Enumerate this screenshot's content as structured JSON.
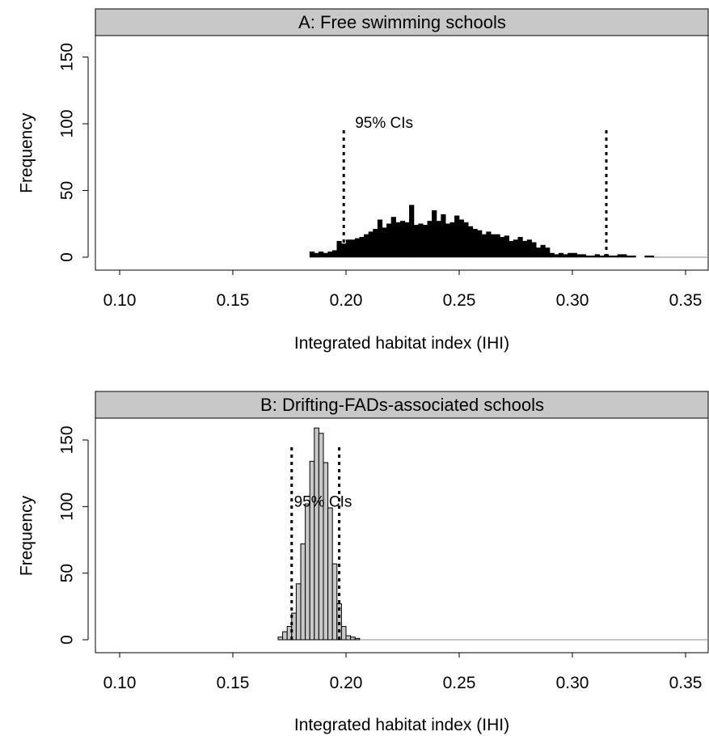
{
  "chart_data": [
    {
      "type": "bar",
      "title": "A: Free swimming schools",
      "xlabel": "Integrated habitat index (IHI)",
      "ylabel": "Frequency",
      "xlim": [
        0.09,
        0.36
      ],
      "ylim": [
        0,
        165
      ],
      "x_ticks": [
        "0.10",
        "0.15",
        "0.20",
        "0.25",
        "0.30",
        "0.35"
      ],
      "y_ticks": [
        "0",
        "50",
        "100",
        "150"
      ],
      "bin_width": 0.002,
      "bin_start": 0.184,
      "bar_color": "#000000",
      "values": [
        4,
        3,
        4,
        3,
        4,
        5,
        12,
        10,
        13,
        13,
        14,
        15,
        17,
        19,
        21,
        28,
        22,
        25,
        30,
        26,
        27,
        26,
        39,
        24,
        25,
        24,
        27,
        35,
        27,
        32,
        25,
        26,
        31,
        28,
        26,
        23,
        21,
        20,
        17,
        19,
        17,
        17,
        15,
        16,
        12,
        13,
        15,
        12,
        13,
        11,
        7,
        9,
        7,
        3,
        2,
        3,
        2,
        3,
        3,
        2,
        2,
        1,
        1,
        2,
        1,
        2,
        1,
        1,
        2,
        2,
        1,
        1,
        0,
        0,
        1,
        1
      ],
      "ci_lines": [
        0.199,
        0.315
      ],
      "ci_line_height": 98,
      "annotation": {
        "text": "95% CIs",
        "x": 0.204,
        "y": 97
      }
    },
    {
      "type": "bar",
      "title": "B: Drifting-FADs-associated schools",
      "xlabel": "Integrated habitat index (IHI)",
      "ylabel": "Frequency",
      "xlim": [
        0.09,
        0.36
      ],
      "ylim": [
        0,
        165
      ],
      "x_ticks": [
        "0.10",
        "0.15",
        "0.20",
        "0.25",
        "0.30",
        "0.35"
      ],
      "y_ticks": [
        "0",
        "50",
        "100",
        "150"
      ],
      "bin_width": 0.002,
      "bin_start": 0.17,
      "bar_color": "#c8c8c8",
      "values": [
        2,
        6,
        10,
        20,
        42,
        72,
        102,
        134,
        159,
        155,
        133,
        99,
        57,
        27,
        10,
        3,
        2,
        1
      ],
      "ci_lines": [
        0.176,
        0.197
      ],
      "ci_line_height": 147,
      "annotation": {
        "text": "95% CIs",
        "x": 0.177,
        "y": 100
      }
    }
  ]
}
